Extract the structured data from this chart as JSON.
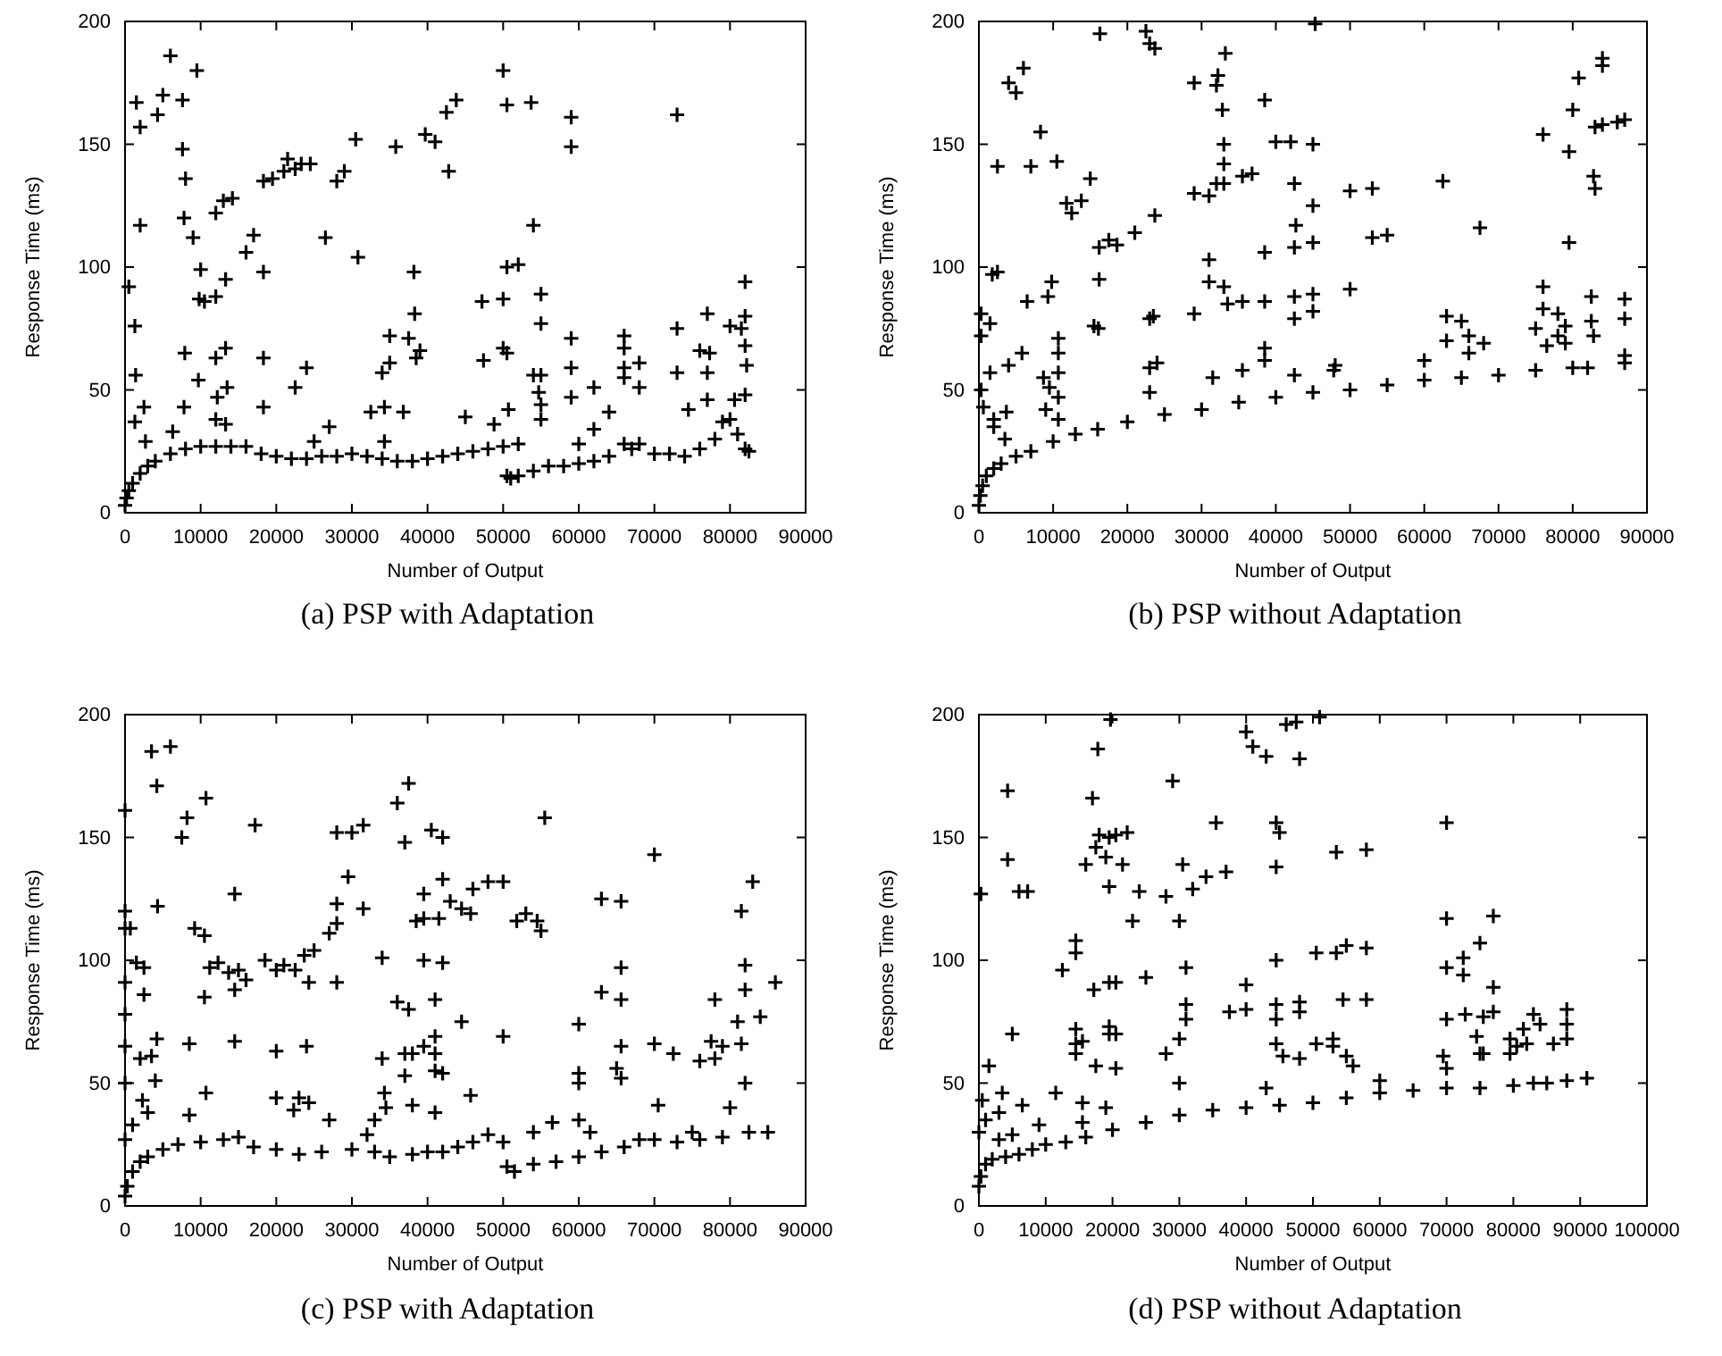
{
  "chart_data": [
    {
      "type": "scatter",
      "title": "(a) PSP with Adaptation",
      "xlabel": "Number of Output",
      "ylabel": "Response Time (ms)",
      "xlim": [
        0,
        90000
      ],
      "ylim": [
        0,
        200
      ],
      "xticks": [
        0,
        10000,
        20000,
        30000,
        40000,
        50000,
        60000,
        70000,
        80000,
        90000
      ],
      "yticks": [
        0,
        50,
        100,
        150,
        200
      ],
      "marker": "cross",
      "series": [
        {
          "color": "#000000",
          "x": [
            0,
            200,
            500,
            1000,
            2000,
            3000,
            4000,
            6000,
            8000,
            10000,
            12000,
            14000,
            16000,
            18000,
            20000,
            22000,
            24000,
            26000,
            28000,
            30000,
            32000,
            34000,
            36000,
            38000,
            40000,
            42000,
            44000,
            46000,
            48000,
            50000,
            52000,
            50500,
            51000,
            52000,
            54000,
            56000,
            58000,
            60000,
            62000,
            64000,
            66000,
            67000,
            68000,
            70000,
            72000,
            74000,
            76000,
            78000,
            79000,
            80000,
            81000,
            82000,
            82500,
            500,
            1500,
            1300,
            1400,
            1300,
            2000,
            2000,
            2500,
            2700,
            4300,
            5000,
            6000,
            6300,
            7600,
            7600,
            7800,
            8000,
            7900,
            7800,
            9000,
            9500,
            10000,
            9800,
            10500,
            9700,
            12000,
            12000,
            12000,
            12200,
            12000,
            13000,
            13300,
            13300,
            13500,
            13300,
            14200,
            16000,
            17000,
            18300,
            18300,
            18300,
            18300,
            19500,
            21000,
            21500,
            22500,
            22500,
            23300,
            24000,
            24500,
            25000,
            26500,
            27000,
            28000,
            29000,
            30500,
            30800,
            32500,
            34000,
            34300,
            34300,
            35000,
            35000,
            35800,
            36800,
            37500,
            38200,
            38300,
            38500,
            39000,
            39700,
            41000,
            42500,
            42800,
            43800,
            45000,
            47200,
            47400,
            48800,
            50000,
            50000,
            50000,
            50500,
            50500,
            50500,
            50700,
            52000,
            53700,
            54000,
            54000,
            55000,
            55000,
            54700,
            55000,
            55000,
            55000,
            59000,
            59000,
            59000,
            59000,
            59000,
            60000,
            62000,
            62000,
            64000,
            66000,
            66000,
            66000,
            66000,
            68000,
            68000,
            73000,
            73000,
            73000,
            74500,
            76000,
            77000,
            77300,
            77000,
            77000,
            80000,
            80600,
            81500,
            82000,
            82000,
            82000,
            82200,
            82000
          ],
          "values": [
            3,
            6,
            9,
            12,
            16,
            19,
            21,
            24,
            26,
            27,
            27,
            27,
            27,
            24,
            23,
            22,
            22,
            23,
            23,
            24,
            23,
            22,
            21,
            21,
            22,
            23,
            24,
            25,
            26,
            27,
            28,
            15,
            14,
            15,
            17,
            19,
            19,
            20,
            21,
            23,
            28,
            26,
            28,
            24,
            24,
            23,
            26,
            30,
            37,
            38,
            32,
            26,
            25,
            92,
            167,
            76,
            56,
            37,
            157,
            117,
            43,
            29,
            162,
            170,
            186,
            33,
            168,
            148,
            120,
            136,
            65,
            43,
            112,
            180,
            99,
            87,
            86,
            54,
            122,
            88,
            63,
            47,
            38,
            127,
            95,
            67,
            51,
            36,
            128,
            106,
            113,
            135,
            98,
            63,
            43,
            136,
            139,
            144,
            140,
            51,
            142,
            59,
            142,
            29,
            112,
            35,
            135,
            139,
            152,
            104,
            41,
            57,
            43,
            29,
            72,
            61,
            149,
            41,
            71,
            98,
            81,
            63,
            66,
            154,
            151,
            163,
            139,
            168,
            39,
            86,
            62,
            36,
            180,
            87,
            67,
            166,
            100,
            65,
            42,
            101,
            167,
            117,
            56,
            89,
            77,
            49,
            56,
            44,
            38,
            161,
            149,
            71,
            59,
            47,
            28,
            51,
            34,
            41,
            72,
            67,
            59,
            55,
            61,
            51,
            162,
            75,
            57,
            42,
            66,
            81,
            65,
            57,
            46,
            76,
            46,
            75,
            94,
            80,
            68,
            60,
            48
          ]
        }
      ]
    },
    {
      "type": "scatter",
      "title": "(b) PSP without Adaptation",
      "xlabel": "Number of Output",
      "ylabel": "Response Time (ms)",
      "xlim": [
        0,
        90000
      ],
      "ylim": [
        0,
        200
      ],
      "xticks": [
        0,
        10000,
        20000,
        30000,
        40000,
        50000,
        60000,
        70000,
        80000,
        90000
      ],
      "yticks": [
        0,
        50,
        100,
        150,
        200
      ],
      "marker": "cross",
      "series": [
        {
          "color": "#000000",
          "x": [
            0,
            200,
            500,
            1000,
            2000,
            3000,
            5000,
            7000,
            10000,
            13000,
            16000,
            20000,
            25000,
            30000,
            35000,
            40000,
            45000,
            50000,
            55000,
            60000,
            65000,
            70000,
            75000,
            80000,
            82000,
            83000,
            84000,
            86000,
            87000,
            84000,
            84000,
            300,
            300,
            300,
            600,
            1500,
            1500,
            1800,
            2500,
            2500,
            2000,
            2000,
            3500,
            3700,
            4000,
            4000,
            5000,
            6000,
            5800,
            6500,
            7000,
            8300,
            8700,
            9000,
            9300,
            9800,
            9500,
            10500,
            10700,
            10700,
            10700,
            10700,
            10700,
            11800,
            12500,
            13800,
            15000,
            15500,
            16100,
            16200,
            16200,
            16300,
            17500,
            18600,
            21000,
            22500,
            23000,
            23000,
            23000,
            23000,
            23500,
            23700,
            23700,
            24000,
            29000,
            29000,
            29000,
            31000,
            31000,
            31000,
            31500,
            32000,
            32000,
            32200,
            32800,
            33000,
            33000,
            33000,
            33000,
            33200,
            33500,
            35500,
            35500,
            35500,
            36800,
            38500,
            38500,
            38500,
            38500,
            38500,
            40000,
            42000,
            42500,
            42700,
            42500,
            42500,
            42500,
            42500,
            45000,
            45000,
            45000,
            45000,
            45000,
            45300,
            47800,
            48000,
            50000,
            50000,
            53000,
            53000,
            55000,
            60000,
            62500,
            63000,
            63000,
            65000,
            66000,
            66000,
            67500,
            68000,
            76000,
            76000,
            76000,
            75000,
            76500,
            78000,
            78000,
            79000,
            79000,
            79500,
            79500,
            80000,
            80800,
            82500,
            82500,
            82800,
            82800,
            83000,
            87000,
            87000,
            87000,
            87000
          ],
          "values": [
            3,
            7,
            11,
            15,
            18,
            20,
            23,
            25,
            29,
            32,
            34,
            37,
            40,
            42,
            45,
            47,
            49,
            50,
            52,
            54,
            55,
            56,
            58,
            59,
            59,
            157,
            158,
            159,
            160,
            182,
            185,
            81,
            72,
            50,
            43,
            77,
            57,
            97,
            98,
            141,
            38,
            35,
            30,
            41,
            175,
            60,
            171,
            181,
            65,
            86,
            141,
            155,
            55,
            42,
            88,
            94,
            51,
            143,
            71,
            65,
            57,
            47,
            38,
            126,
            122,
            127,
            136,
            76,
            75,
            95,
            108,
            195,
            111,
            109,
            114,
            196,
            191,
            79,
            59,
            49,
            80,
            189,
            121,
            61,
            175,
            130,
            81,
            129,
            103,
            94,
            55,
            134,
            174,
            178,
            164,
            92,
            150,
            142,
            134,
            187,
            85,
            86,
            137,
            58,
            138,
            168,
            106,
            86,
            67,
            62,
            151,
            151,
            134,
            117,
            108,
            88,
            79,
            56,
            150,
            125,
            110,
            89,
            82,
            199,
            58,
            60,
            131,
            91,
            132,
            112,
            113,
            62,
            135,
            80,
            70,
            78,
            72,
            65,
            116,
            69,
            154,
            92,
            83,
            75,
            68,
            81,
            72,
            76,
            69,
            110,
            147,
            164,
            177,
            88,
            78,
            72,
            137,
            132,
            87,
            79,
            64,
            61
          ]
        }
      ]
    },
    {
      "type": "scatter",
      "title": "(c) PSP with Adaptation",
      "xlabel": "Number of Output",
      "ylabel": "Response Time (ms)",
      "xlim": [
        0,
        90000
      ],
      "ylim": [
        0,
        200
      ],
      "xticks": [
        0,
        10000,
        20000,
        30000,
        40000,
        50000,
        60000,
        70000,
        80000,
        90000
      ],
      "yticks": [
        0,
        50,
        100,
        150,
        200
      ],
      "marker": "cross",
      "series": [
        {
          "color": "#000000",
          "x": [
            0,
            300,
            1000,
            2000,
            3000,
            5000,
            7000,
            10000,
            13000,
            15000,
            17000,
            20000,
            23000,
            26000,
            30000,
            33000,
            35000,
            38000,
            40000,
            42000,
            44000,
            46000,
            48000,
            50000,
            50500,
            51500,
            54000,
            57000,
            60000,
            63000,
            66000,
            68000,
            70000,
            73000,
            75000,
            76000,
            79000,
            80000,
            81000,
            81500,
            82000,
            82500,
            84000,
            85000,
            0,
            0,
            0,
            0,
            0,
            0,
            0,
            0,
            700,
            1500,
            1000,
            2000,
            2500,
            2500,
            2300,
            3000,
            3500,
            3500,
            4200,
            4300,
            4200,
            4000,
            6000,
            7500,
            8200,
            8500,
            8500,
            9200,
            10500,
            10700,
            10500,
            10700,
            11200,
            12300,
            13700,
            14500,
            14500,
            14500,
            15000,
            16000,
            17200,
            18500,
            20000,
            20000,
            20000,
            21000,
            22500,
            22300,
            23000,
            23700,
            24000,
            24300,
            24300,
            25000,
            27000,
            27000,
            28000,
            28000,
            28000,
            28000,
            29500,
            30000,
            31500,
            31500,
            32000,
            33000,
            34000,
            34000,
            34300,
            34500,
            36000,
            36000,
            37000,
            37000,
            37000,
            37500,
            37500,
            38000,
            38000,
            38500,
            39500,
            39500,
            39500,
            39500,
            40500,
            41000,
            41000,
            41000,
            41000,
            41000,
            41500,
            42000,
            42000,
            42000,
            42000,
            43000,
            44500,
            44500,
            45700,
            45700,
            46000,
            48000,
            50000,
            50000,
            51800,
            53000,
            54500,
            55000,
            55500,
            54000,
            56500,
            60000,
            60000,
            60000,
            60000,
            61500,
            63000,
            63000,
            65000,
            65600,
            65600,
            65600,
            65600,
            65600,
            70000,
            70000,
            70500,
            72500,
            76000,
            77500,
            78000,
            78000,
            79000,
            81500,
            82000,
            82000,
            83000,
            86000
          ],
          "values": [
            4,
            8,
            14,
            18,
            20,
            23,
            25,
            26,
            27,
            28,
            24,
            23,
            21,
            22,
            23,
            22,
            20,
            21,
            22,
            22,
            24,
            26,
            29,
            26,
            16,
            14,
            17,
            18,
            20,
            22,
            24,
            27,
            27,
            26,
            30,
            27,
            28,
            40,
            75,
            66,
            50,
            30,
            77,
            30,
            161,
            120,
            113,
            91,
            78,
            65,
            50,
            27,
            113,
            99,
            33,
            60,
            97,
            86,
            43,
            38,
            185,
            61,
            171,
            122,
            68,
            51,
            187,
            150,
            158,
            66,
            37,
            113,
            110,
            166,
            85,
            46,
            97,
            99,
            95,
            127,
            88,
            67,
            96,
            92,
            155,
            100,
            96,
            63,
            44,
            98,
            96,
            39,
            44,
            102,
            65,
            91,
            42,
            104,
            111,
            35,
            152,
            123,
            115,
            91,
            134,
            152,
            155,
            121,
            29,
            35,
            101,
            60,
            46,
            40,
            164,
            83,
            148,
            62,
            53,
            172,
            80,
            41,
            62,
            116,
            127,
            117,
            100,
            65,
            153,
            84,
            69,
            55,
            38,
            62,
            117,
            150,
            133,
            99,
            54,
            124,
            121,
            75,
            119,
            45,
            129,
            132,
            132,
            69,
            116,
            119,
            116,
            112,
            158,
            30,
            34,
            74,
            54,
            50,
            35,
            30,
            125,
            87,
            56,
            124,
            97,
            84,
            65,
            52,
            143,
            66,
            41,
            62,
            59,
            67,
            84,
            60,
            65,
            120,
            98,
            88,
            132,
            91
          ]
        }
      ]
    },
    {
      "type": "scatter",
      "title": "(d) PSP without Adaptation",
      "xlabel": "Number of Output",
      "ylabel": "Response Time (ms)",
      "xlim": [
        0,
        100000
      ],
      "ylim": [
        0,
        200
      ],
      "xticks": [
        0,
        10000,
        20000,
        30000,
        40000,
        50000,
        60000,
        70000,
        80000,
        90000,
        100000
      ],
      "yticks": [
        0,
        50,
        100,
        150,
        200
      ],
      "marker": "cross",
      "series": [
        {
          "color": "#000000",
          "x": [
            0,
            300,
            1000,
            2000,
            4000,
            6000,
            8000,
            10000,
            13000,
            16000,
            20000,
            25000,
            30000,
            35000,
            40000,
            45000,
            50000,
            55000,
            60000,
            65000,
            70000,
            75000,
            80000,
            83000,
            85000,
            88000,
            91000,
            0,
            300,
            500,
            1000,
            1500,
            3000,
            3000,
            3500,
            4300,
            4300,
            5000,
            5000,
            6000,
            6500,
            7300,
            9000,
            11500,
            12500,
            14500,
            14500,
            14500,
            14500,
            14500,
            15500,
            15500,
            15500,
            16000,
            17000,
            17200,
            17500,
            17800,
            17500,
            18000,
            19000,
            19000,
            19500,
            19500,
            19500,
            19500,
            19500,
            19700,
            20500,
            20500,
            20500,
            20500,
            21500,
            22200,
            23000,
            24000,
            25000,
            28000,
            28000,
            29000,
            30000,
            30000,
            30000,
            30500,
            31000,
            31000,
            31000,
            32000,
            34000,
            35500,
            37000,
            37500,
            40000,
            40000,
            40000,
            41000,
            43000,
            43000,
            44500,
            44500,
            44500,
            44500,
            44500,
            44500,
            45000,
            45500,
            46000,
            47500,
            48000,
            48000,
            48000,
            48000,
            50500,
            50500,
            51000,
            53000,
            53000,
            53500,
            53500,
            54500,
            55000,
            55000,
            56000,
            58000,
            58000,
            58000,
            60000,
            69500,
            70000,
            70000,
            70000,
            70000,
            70000,
            72500,
            72500,
            72800,
            75000,
            74500,
            75000,
            75500,
            75500,
            77000,
            77000,
            77000,
            79500,
            79500,
            80500,
            81500,
            82000,
            83000,
            84000,
            86000,
            88000,
            88000,
            88000
          ],
          "values": [
            8,
            12,
            17,
            19,
            20,
            21,
            23,
            25,
            26,
            28,
            31,
            34,
            37,
            39,
            40,
            41,
            42,
            44,
            46,
            47,
            48,
            48,
            49,
            50,
            50,
            51,
            52,
            30,
            127,
            43,
            35,
            57,
            38,
            27,
            46,
            169,
            141,
            70,
            29,
            128,
            41,
            128,
            33,
            46,
            96,
            108,
            103,
            72,
            66,
            62,
            67,
            42,
            34,
            139,
            166,
            88,
            57,
            186,
            146,
            151,
            142,
            40,
            150,
            130,
            91,
            73,
            70,
            198,
            151,
            91,
            70,
            56,
            139,
            152,
            116,
            128,
            93,
            126,
            62,
            173,
            116,
            68,
            50,
            139,
            97,
            82,
            76,
            129,
            134,
            156,
            136,
            79,
            193,
            90,
            80,
            187,
            183,
            48,
            156,
            138,
            100,
            82,
            76,
            66,
            152,
            61,
            196,
            197,
            182,
            83,
            79,
            60,
            103,
            66,
            199,
            68,
            65,
            103,
            144,
            84,
            106,
            61,
            57,
            145,
            105,
            84,
            51,
            61,
            156,
            117,
            97,
            76,
            56,
            101,
            94,
            78,
            107,
            69,
            62,
            77,
            62,
            118,
            89,
            79,
            68,
            62,
            65,
            72,
            66,
            78,
            74,
            66,
            80,
            74,
            68
          ]
        }
      ]
    }
  ]
}
